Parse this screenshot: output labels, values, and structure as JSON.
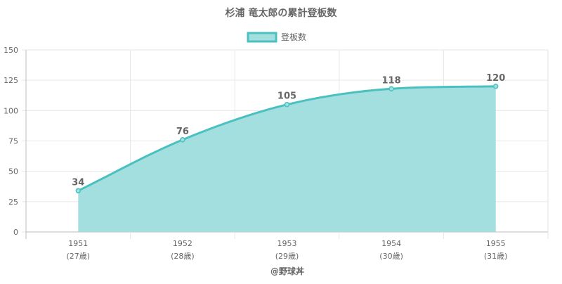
{
  "chart_data": {
    "type": "area",
    "title": "杉浦 竜太郎の累計登板数",
    "series": [
      {
        "name": "登板数",
        "values": [
          34,
          76,
          105,
          118,
          120
        ]
      }
    ],
    "categories": [
      "1951",
      "1952",
      "1953",
      "1954",
      "1955"
    ],
    "category_sublabels": [
      "(27歳)",
      "(28歳)",
      "(29歳)",
      "(30歳)",
      "(31歳)"
    ],
    "ylim": [
      0,
      150
    ],
    "yticks": [
      0,
      25,
      50,
      75,
      100,
      125,
      150
    ],
    "grid": true,
    "legend_position": "top",
    "colors": {
      "line": "#4bc0c0",
      "fill": "#a4dfdf",
      "grid": "#e6e6e6",
      "axis": "#bdbdbd",
      "text": "#666666"
    },
    "credit": "@野球丼"
  }
}
